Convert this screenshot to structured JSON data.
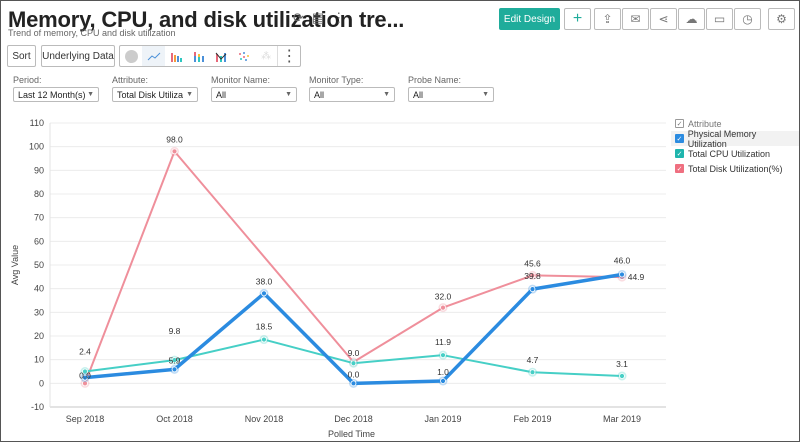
{
  "header": {
    "title": "Memory, CPU, and disk utilization tre...",
    "subtitle": "Trend of memory, CPU and disk utilization",
    "edit_design_label": "Edit Design"
  },
  "toolbar": {
    "sort_label": "Sort",
    "underlying_data_label": "Underlying Data",
    "chart_types": [
      "pie-chart-icon",
      "line-chart-icon",
      "bar-chart-icon",
      "stacked-bar-icon",
      "combo-chart-icon",
      "scatter-icon",
      "map-icon"
    ],
    "right_tools": [
      "add-icon",
      "export-icon",
      "email-icon",
      "share-icon",
      "publish-icon",
      "comment-icon",
      "schedule-icon",
      "settings-icon"
    ]
  },
  "filters": [
    {
      "label": "Period:",
      "value": "Last 12 Month(s)"
    },
    {
      "label": "Attribute:",
      "value": "Total Disk Utiliza"
    },
    {
      "label": "Monitor Name:",
      "value": "All"
    },
    {
      "label": "Monitor Type:",
      "value": "All"
    },
    {
      "label": "Probe Name:",
      "value": "All"
    }
  ],
  "legend": {
    "title": "Attribute",
    "items": [
      {
        "label": "Physical Memory Utilization",
        "color": "#2b8be0"
      },
      {
        "label": "Total CPU Utilization",
        "color": "#2ec7c0"
      },
      {
        "label": "Total Disk Utilization(%)",
        "color": "#ef7f8e"
      }
    ]
  },
  "chart_data": {
    "type": "line",
    "title": "",
    "xlabel": "Polled Time",
    "ylabel": "Avg Value",
    "ylim": [
      -10,
      110
    ],
    "yticks": [
      -10,
      0,
      10,
      20,
      30,
      40,
      50,
      60,
      70,
      80,
      90,
      100,
      110
    ],
    "categories": [
      "Sep 2018",
      "Oct 2018",
      "Nov 2018",
      "Dec 2018",
      "Jan 2019",
      "Feb 2019",
      "Mar 2019"
    ],
    "grid": true,
    "legend_position": "right",
    "series": [
      {
        "name": "Physical Memory Utilization",
        "color": "#2b8be0",
        "values": [
          2.4,
          5.9,
          38.0,
          0.0,
          1.0,
          39.8,
          46.0
        ],
        "labels": [
          "2.4",
          "5.9",
          "38.0",
          "0.0",
          "1.0",
          "39.8",
          "46.0"
        ]
      },
      {
        "name": "Total CPU Utilization",
        "color": "#46cfc6",
        "values": [
          5.0,
          9.8,
          18.5,
          8.5,
          11.9,
          4.7,
          3.1
        ],
        "labels": [
          "",
          "9.8",
          "18.5",
          "",
          "11.9",
          "4.7",
          "3.1"
        ]
      },
      {
        "name": "Total Disk Utilization(%)",
        "color": "#ef8f9b",
        "values": [
          0.0,
          98.0,
          null,
          9.0,
          32.0,
          45.6,
          44.9
        ],
        "labels": [
          "0.0",
          "98.0",
          "",
          "9.0",
          "32.0",
          "45.6",
          "44.9"
        ]
      }
    ]
  }
}
